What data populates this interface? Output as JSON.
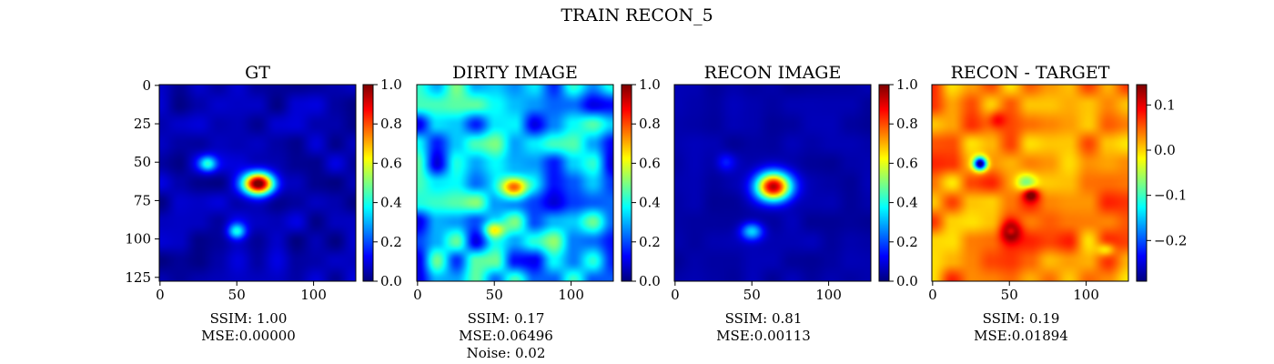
{
  "figure": {
    "suptitle": "TRAIN RECON_5"
  },
  "colormap": {
    "name": "jet",
    "stops": [
      "#00007f",
      "#0000ff",
      "#007fff",
      "#00ffff",
      "#7fff7f",
      "#ffff00",
      "#ff7f00",
      "#ff0000",
      "#7f0000"
    ]
  },
  "chart_data": [
    {
      "type": "heatmap",
      "title": "GT",
      "image_size": 128,
      "xlim": [
        0,
        127
      ],
      "ylim": [
        127,
        0
      ],
      "xticks": [
        0,
        50,
        100
      ],
      "yticks": [
        0,
        25,
        50,
        75,
        100,
        125
      ],
      "show_yticks": true,
      "colorbar": {
        "min": 0.0,
        "max": 1.0,
        "ticks": [
          0.0,
          0.2,
          0.4,
          0.6,
          0.8,
          1.0
        ],
        "tick_labels": [
          "0.0",
          "0.2",
          "0.4",
          "0.6",
          "0.8",
          "1.0"
        ]
      },
      "background": 0.05,
      "noise_amplitude": 0.05,
      "blobs": [
        {
          "x": 64,
          "y": 64,
          "peak": 1.0,
          "sx": 7,
          "sy": 5
        },
        {
          "x": 31,
          "y": 51,
          "peak": 0.32,
          "sx": 4,
          "sy": 3.5
        },
        {
          "x": 50,
          "y": 95,
          "peak": 0.32,
          "sx": 4,
          "sy": 3.5
        }
      ],
      "annotations": [
        "SSIM: 1.00",
        "MSE:0.00000"
      ]
    },
    {
      "type": "heatmap",
      "title": "DIRTY IMAGE",
      "image_size": 128,
      "xlim": [
        0,
        127
      ],
      "ylim": [
        127,
        0
      ],
      "xticks": [
        0,
        50,
        100
      ],
      "yticks": [
        0,
        25,
        50,
        75,
        100,
        125
      ],
      "show_yticks": false,
      "colorbar": {
        "min": 0.0,
        "max": 1.0,
        "ticks": [
          0.0,
          0.2,
          0.4,
          0.6,
          0.8,
          1.0
        ],
        "tick_labels": [
          "0.0",
          "0.2",
          "0.4",
          "0.6",
          "0.8",
          "1.0"
        ]
      },
      "background": 0.3,
      "noise_amplitude": 0.22,
      "blobs": [
        {
          "x": 63,
          "y": 66,
          "peak": 0.62,
          "sx": 6,
          "sy": 5
        },
        {
          "x": 50,
          "y": 94,
          "peak": 0.3,
          "sx": 5,
          "sy": 3.5
        }
      ],
      "annotations": [
        "SSIM: 0.17",
        "MSE:0.06496",
        "Noise: 0.02"
      ]
    },
    {
      "type": "heatmap",
      "title": "RECON IMAGE",
      "image_size": 128,
      "xlim": [
        0,
        127
      ],
      "ylim": [
        127,
        0
      ],
      "xticks": [
        0,
        50,
        100
      ],
      "yticks": [
        0,
        25,
        50,
        75,
        100,
        125
      ],
      "show_yticks": false,
      "colorbar": {
        "min": 0.0,
        "max": 1.0,
        "ticks": [
          0.0,
          0.2,
          0.4,
          0.6,
          0.8,
          1.0
        ],
        "tick_labels": [
          "0.0",
          "0.2",
          "0.4",
          "0.6",
          "0.8",
          "1.0"
        ]
      },
      "background": 0.04,
      "noise_amplitude": 0.02,
      "blobs": [
        {
          "x": 64,
          "y": 66,
          "peak": 0.9,
          "sx": 8,
          "sy": 6.5
        },
        {
          "x": 50,
          "y": 95,
          "peak": 0.3,
          "sx": 5,
          "sy": 4
        },
        {
          "x": 33,
          "y": 50,
          "peak": 0.1,
          "sx": 4,
          "sy": 4
        }
      ],
      "annotations": [
        "SSIM: 0.81",
        "MSE:0.00113"
      ]
    },
    {
      "type": "heatmap",
      "title": "RECON - TARGET",
      "image_size": 128,
      "xlim": [
        0,
        127
      ],
      "ylim": [
        127,
        0
      ],
      "xticks": [
        0,
        50,
        100
      ],
      "yticks": [
        0,
        25,
        50,
        75,
        100,
        125
      ],
      "show_yticks": false,
      "colorbar": {
        "min": -0.29,
        "max": 0.145,
        "ticks": [
          -0.2,
          -0.1,
          0.0,
          0.1
        ],
        "tick_labels": [
          "−0.2",
          "−0.1",
          "0.0",
          "0.1"
        ]
      },
      "background": 0.035,
      "noise_amplitude": 0.045,
      "blobs": [
        {
          "x": 31,
          "y": 51,
          "peak": -0.32,
          "sx": 3,
          "sy": 3
        },
        {
          "x": 64,
          "y": 71,
          "peak": 0.11,
          "sx": 3.5,
          "sy": 3
        },
        {
          "x": 61,
          "y": 63,
          "peak": -0.1,
          "sx": 5,
          "sy": 4
        },
        {
          "x": 51,
          "y": 95,
          "peak": 0.11,
          "sx": 4.5,
          "sy": 5
        },
        {
          "x": 51,
          "y": 95,
          "peak": -0.07,
          "sx": 2,
          "sy": 2
        },
        {
          "x": 42,
          "y": 22,
          "peak": 0.05,
          "sx": 4,
          "sy": 4
        },
        {
          "x": 113,
          "y": 107,
          "peak": -0.08,
          "sx": 4,
          "sy": 3
        }
      ],
      "annotations": [
        "SSIM: 0.19",
        "MSE:0.01894"
      ]
    }
  ]
}
